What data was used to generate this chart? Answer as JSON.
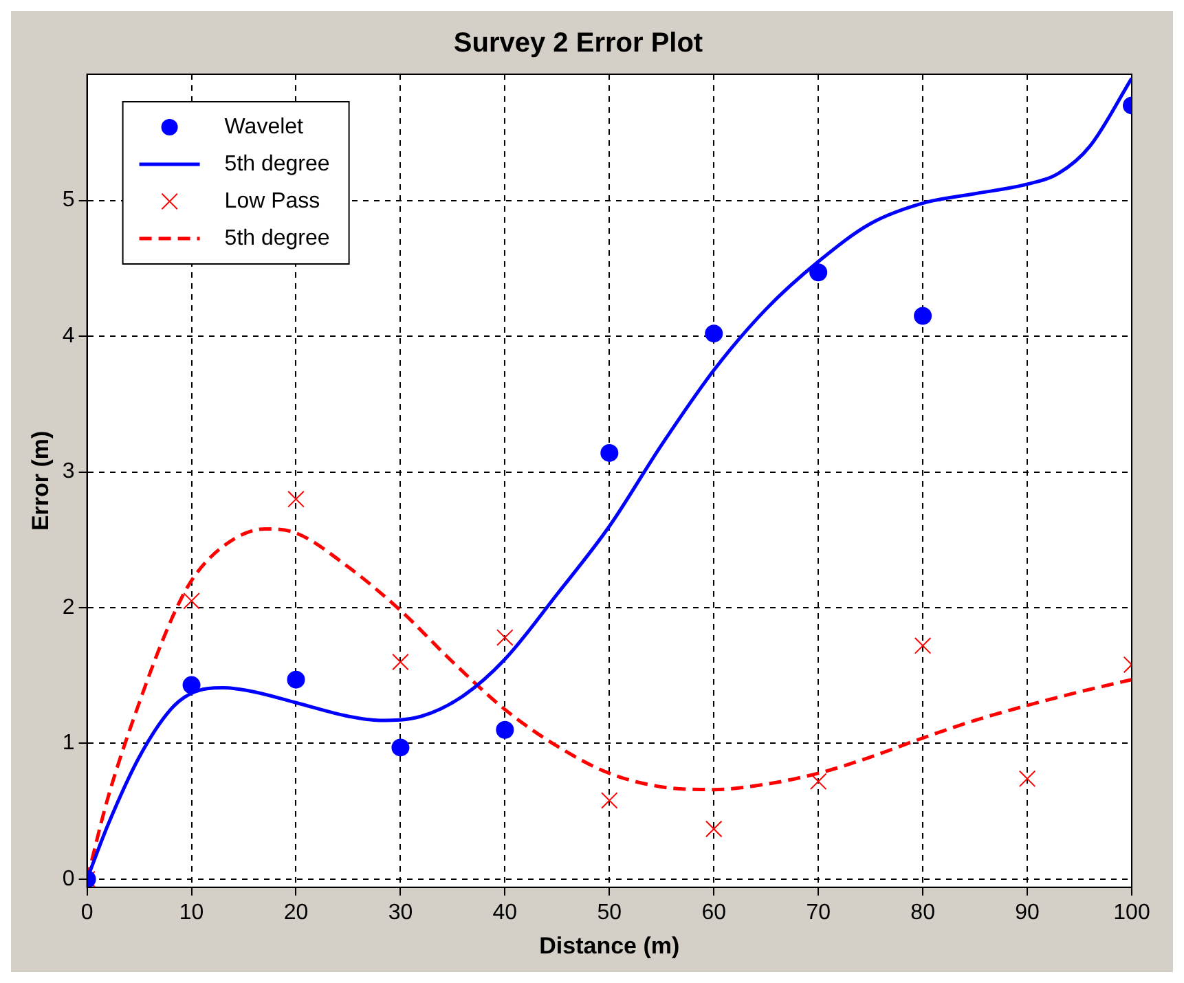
{
  "chart_data": {
    "type": "scatter",
    "title": "Survey 2 Error Plot",
    "xlabel": "Distance (m)",
    "ylabel": "Error (m)",
    "xlim": [
      0,
      100
    ],
    "ylim": [
      -0.06,
      5.93
    ],
    "xticks": [
      0,
      10,
      20,
      30,
      40,
      50,
      60,
      70,
      80,
      90,
      100
    ],
    "yticks": [
      0,
      1,
      2,
      3,
      4,
      5
    ],
    "grid": true,
    "legend": "top left",
    "series": [
      {
        "name": "Wavelet",
        "marker": "circle",
        "color": "#0000ff",
        "x": [
          0,
          10,
          20,
          30,
          40,
          50,
          60,
          70,
          80,
          100
        ],
        "values": [
          0,
          1.43,
          1.47,
          0.97,
          1.1,
          3.14,
          4.02,
          4.47,
          4.15,
          5.7
        ]
      },
      {
        "name": "5th degree",
        "type": "line",
        "marker": "none",
        "line_style": "solid",
        "color": "#0000ff",
        "x": [
          0,
          2,
          5,
          8,
          10,
          13,
          16,
          20,
          25,
          28,
          32,
          36,
          40,
          45,
          50,
          55,
          60,
          65,
          70,
          75,
          80,
          85,
          90,
          93,
          96,
          100
        ],
        "values": [
          0,
          0.4,
          0.9,
          1.25,
          1.37,
          1.41,
          1.38,
          1.3,
          1.2,
          1.17,
          1.2,
          1.35,
          1.62,
          2.1,
          2.6,
          3.2,
          3.75,
          4.2,
          4.55,
          4.83,
          4.98,
          5.05,
          5.12,
          5.2,
          5.4,
          5.9
        ]
      },
      {
        "name": "Low Pass",
        "marker": "cross",
        "color": "#ff0000",
        "x": [
          0,
          10,
          20,
          30,
          40,
          50,
          60,
          70,
          80,
          90,
          100
        ],
        "values": [
          0,
          2.05,
          2.8,
          1.6,
          1.78,
          0.58,
          0.37,
          0.72,
          1.72,
          0.74,
          1.58
        ]
      },
      {
        "name": "5th degree",
        "type": "line",
        "marker": "none",
        "line_style": "dashed",
        "color": "#ff0000",
        "x": [
          0,
          2,
          5,
          8,
          10,
          13,
          17,
          20,
          25,
          30,
          35,
          40,
          45,
          50,
          55,
          60,
          65,
          70,
          75,
          80,
          85,
          90,
          95,
          100
        ],
        "values": [
          0,
          0.6,
          1.3,
          1.9,
          2.2,
          2.45,
          2.58,
          2.55,
          2.3,
          1.98,
          1.6,
          1.25,
          0.98,
          0.78,
          0.68,
          0.66,
          0.7,
          0.78,
          0.9,
          1.04,
          1.17,
          1.28,
          1.38,
          1.47
        ]
      }
    ]
  }
}
